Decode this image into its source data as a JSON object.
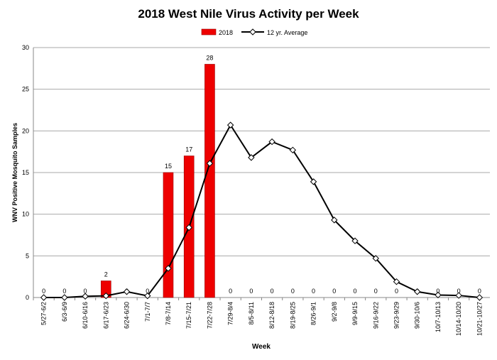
{
  "chart_data": {
    "type": "bar",
    "title": "2018 West Nile Virus Activity per Week",
    "xlabel": "Week",
    "ylabel": "WNV Positive Mosquito Samples",
    "ylim": [
      0,
      30
    ],
    "yticks": [
      0,
      5,
      10,
      15,
      20,
      25,
      30
    ],
    "grid": true,
    "legend_position": "top-center",
    "categories": [
      "5/27-6/2",
      "6/3-6/9",
      "6/10-6/16",
      "6/17-6/23",
      "6/24-6/30",
      "7/1-7/7",
      "7/8-7/14",
      "7/15-7/21",
      "7/22-7/28",
      "7/29-8/4",
      "8/5-8/11",
      "8/12-8/18",
      "8/19-8/25",
      "8/26-9/1",
      "9/2-9/8",
      "9/9-9/15",
      "9/16-9/22",
      "9/23-9/29",
      "9/30-10/6",
      "10/7-10/13",
      "10/14-10/20",
      "10/21-10/27"
    ],
    "series": [
      {
        "name": "2018",
        "type": "bar",
        "color": "#ee0000",
        "values": [
          0,
          0,
          0,
          2,
          0,
          0,
          15,
          17,
          28,
          0,
          0,
          0,
          0,
          0,
          0,
          0,
          0,
          0,
          0,
          0,
          0,
          0
        ],
        "labels": [
          "0",
          "0",
          "0",
          "2",
          "0",
          "0",
          "15",
          "17",
          "28",
          "0",
          "0",
          "0",
          "0",
          "0",
          "0",
          "0",
          "0",
          "0",
          "0",
          "0",
          "0",
          "0"
        ]
      },
      {
        "name": "12 yr. Average",
        "type": "line",
        "color": "#000000",
        "values": [
          0,
          0,
          0.15,
          0.2,
          0.7,
          0.2,
          3.5,
          8.4,
          16.1,
          20.7,
          16.8,
          18.7,
          17.7,
          13.9,
          9.3,
          6.8,
          4.7,
          1.9,
          0.7,
          0.3,
          0.25,
          0
        ]
      }
    ]
  }
}
